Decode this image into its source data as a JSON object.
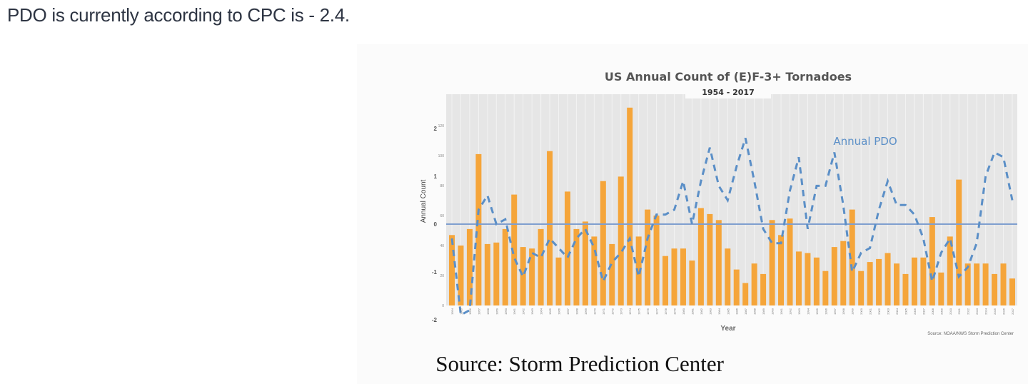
{
  "intro_text": "PDO is currently according to CPC is - 2.4.",
  "caption": "Source: Storm Prediction Center",
  "chart_data": {
    "type": "bar+line",
    "title": "US Annual Count of (E)F-3+ Tornadoes",
    "subtitle": "1954 - 2017",
    "xlabel": "Year",
    "ylabel": "Annual Count",
    "source_note": "Source: NOAA/NWS Storm Prediction Center",
    "y_left_ticks": [
      0,
      20,
      40,
      60,
      80,
      100,
      120
    ],
    "y_pdo_ticks": [
      -2,
      -1,
      0,
      1,
      2
    ],
    "ylim": [
      0,
      140
    ],
    "pdo_lim": [
      -2,
      2
    ],
    "grid": true,
    "colors": {
      "bars": "#f5a53a",
      "pdo_line": "#5b8fc7",
      "zero_line": "#7f9fcf",
      "plot_bg": "#e6e6e6"
    },
    "categories": [
      "1954",
      "1955",
      "1956",
      "1957",
      "1958",
      "1959",
      "1960",
      "1961",
      "1962",
      "1963",
      "1964",
      "1965",
      "1966",
      "1967",
      "1968",
      "1969",
      "1970",
      "1971",
      "1972",
      "1973",
      "1974",
      "1975",
      "1976",
      "1977",
      "1978",
      "1979",
      "1980",
      "1981",
      "1982",
      "1983",
      "1984",
      "1985",
      "1986",
      "1987",
      "1988",
      "1989",
      "1990",
      "1991",
      "1992",
      "1993",
      "1994",
      "1995",
      "1996",
      "1997",
      "1998",
      "1999",
      "2000",
      "2001",
      "2002",
      "2003",
      "2004",
      "2005",
      "2006",
      "2007",
      "2008",
      "2009",
      "2010",
      "2011",
      "2012",
      "2013",
      "2014",
      "2015",
      "2016",
      "2017"
    ],
    "series": [
      {
        "type": "bar",
        "values": [
          47,
          40,
          51,
          101,
          41,
          42,
          51,
          74,
          39,
          38,
          51,
          103,
          32,
          76,
          51,
          56,
          46,
          83,
          41,
          86,
          132,
          46,
          64,
          60,
          33,
          38,
          38,
          30,
          65,
          61,
          57,
          38,
          24,
          15,
          28,
          21,
          57,
          47,
          58,
          36,
          35,
          32,
          23,
          39,
          43,
          64,
          23,
          29,
          31,
          35,
          28,
          21,
          32,
          32,
          59,
          22,
          46,
          84,
          28,
          28,
          28,
          21,
          28,
          18
        ]
      },
      {
        "type": "line",
        "name": "Annual PDO",
        "values": [
          -0.3,
          -1.9,
          -1.8,
          0.3,
          0.6,
          0.0,
          0.1,
          -0.7,
          -1.1,
          -0.6,
          -0.7,
          -0.3,
          -0.5,
          -0.7,
          -0.3,
          -0.1,
          -0.5,
          -1.2,
          -0.8,
          -0.6,
          -0.3,
          -1.1,
          -0.3,
          0.2,
          0.2,
          0.3,
          0.9,
          0.0,
          0.9,
          1.6,
          0.8,
          0.5,
          1.2,
          1.8,
          0.9,
          -0.1,
          -0.4,
          -0.4,
          0.7,
          1.4,
          -0.1,
          0.8,
          0.8,
          1.5,
          0.4,
          -1.0,
          -0.6,
          -0.5,
          0.3,
          0.9,
          0.4,
          0.4,
          0.2,
          -0.3,
          -1.2,
          -0.6,
          -0.3,
          -1.1,
          -0.9,
          -0.4,
          1.0,
          1.5,
          1.4,
          0.5
        ]
      }
    ]
  }
}
